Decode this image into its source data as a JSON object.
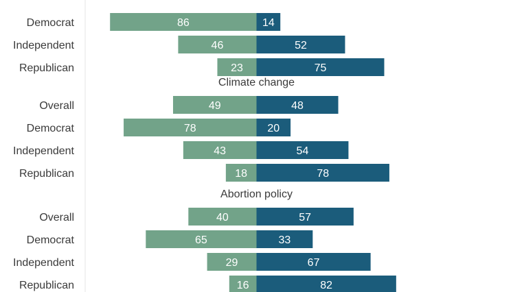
{
  "chart_data": {
    "type": "bar",
    "orientation": "diverging-horizontal",
    "colors": {
      "left": "#72a389",
      "right": "#1b5c7b",
      "axis": "#e6e6e6"
    },
    "groups": [
      {
        "title": "",
        "rows": [
          {
            "category": "",
            "left": null,
            "right": null
          },
          {
            "category": "Democrat",
            "left": 86,
            "right": 14
          },
          {
            "category": "Independent",
            "left": 46,
            "right": 52
          },
          {
            "category": "Republican",
            "left": 23,
            "right": 75
          }
        ]
      },
      {
        "title": "Climate change",
        "rows": [
          {
            "category": "Overall",
            "left": 49,
            "right": 48
          },
          {
            "category": "Democrat",
            "left": 78,
            "right": 20
          },
          {
            "category": "Independent",
            "left": 43,
            "right": 54
          },
          {
            "category": "Republican",
            "left": 18,
            "right": 78
          }
        ]
      },
      {
        "title": "Abortion policy",
        "rows": [
          {
            "category": "Overall",
            "left": 40,
            "right": 57
          },
          {
            "category": "Democrat",
            "left": 65,
            "right": 33
          },
          {
            "category": "Independent",
            "left": 29,
            "right": 67
          },
          {
            "category": "Republican",
            "left": 16,
            "right": 82
          }
        ]
      }
    ]
  }
}
